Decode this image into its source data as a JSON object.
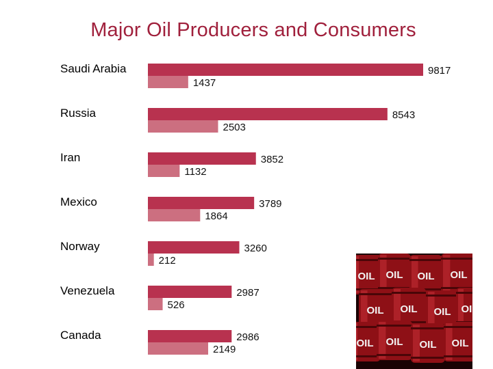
{
  "title": "Major Oil Producers and Consumers",
  "colors": {
    "title": "#a0203c",
    "production": "#b8324f",
    "consumption": "#cc6f80",
    "barrel": "#8e1016",
    "barrel_text": "#f2f2f2"
  },
  "photo": {
    "icon": "oil-barrels-image",
    "barrel_text": "OIL"
  },
  "chart_data": {
    "type": "bar",
    "orientation": "horizontal",
    "title": "Major Oil Producers and Consumers",
    "categories": [
      "Saudi Arabia",
      "Russia",
      "Iran",
      "Mexico",
      "Norway",
      "Venezuela",
      "Canada"
    ],
    "series": [
      {
        "values": [
          9817,
          8543,
          3852,
          3789,
          3260,
          2987,
          2986
        ]
      },
      {
        "values": [
          1437,
          2503,
          1132,
          1864,
          212,
          526,
          2149
        ]
      }
    ],
    "xlim": [
      0,
      10000
    ],
    "grid": false,
    "legend": "none"
  }
}
